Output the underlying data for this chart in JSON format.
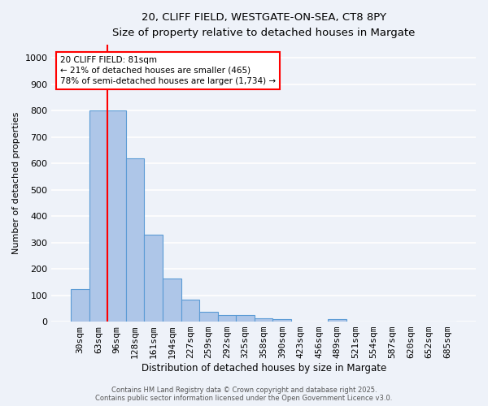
{
  "title_line1": "20, CLIFF FIELD, WESTGATE-ON-SEA, CT8 8PY",
  "title_line2": "Size of property relative to detached houses in Margate",
  "xlabel": "Distribution of detached houses by size in Margate",
  "ylabel": "Number of detached properties",
  "categories": [
    "30sqm",
    "63sqm",
    "96sqm",
    "128sqm",
    "161sqm",
    "194sqm",
    "227sqm",
    "259sqm",
    "292sqm",
    "325sqm",
    "358sqm",
    "390sqm",
    "423sqm",
    "456sqm",
    "489sqm",
    "521sqm",
    "554sqm",
    "587sqm",
    "620sqm",
    "652sqm",
    "685sqm"
  ],
  "values": [
    122,
    800,
    800,
    620,
    330,
    165,
    82,
    38,
    25,
    25,
    13,
    8,
    0,
    0,
    8,
    0,
    0,
    0,
    0,
    0,
    0
  ],
  "bar_color": "#aec6e8",
  "bar_edge_color": "#5b9bd5",
  "vline_color": "red",
  "annotation_text": "20 CLIFF FIELD: 81sqm\n← 21% of detached houses are smaller (465)\n78% of semi-detached houses are larger (1,734) →",
  "annotation_box_color": "white",
  "annotation_box_edge_color": "red",
  "ylim": [
    0,
    1050
  ],
  "yticks": [
    0,
    100,
    200,
    300,
    400,
    500,
    600,
    700,
    800,
    900,
    1000
  ],
  "footnote": "Contains HM Land Registry data © Crown copyright and database right 2025.\nContains public sector information licensed under the Open Government Licence v3.0.",
  "background_color": "#eef2f9",
  "grid_color": "white"
}
